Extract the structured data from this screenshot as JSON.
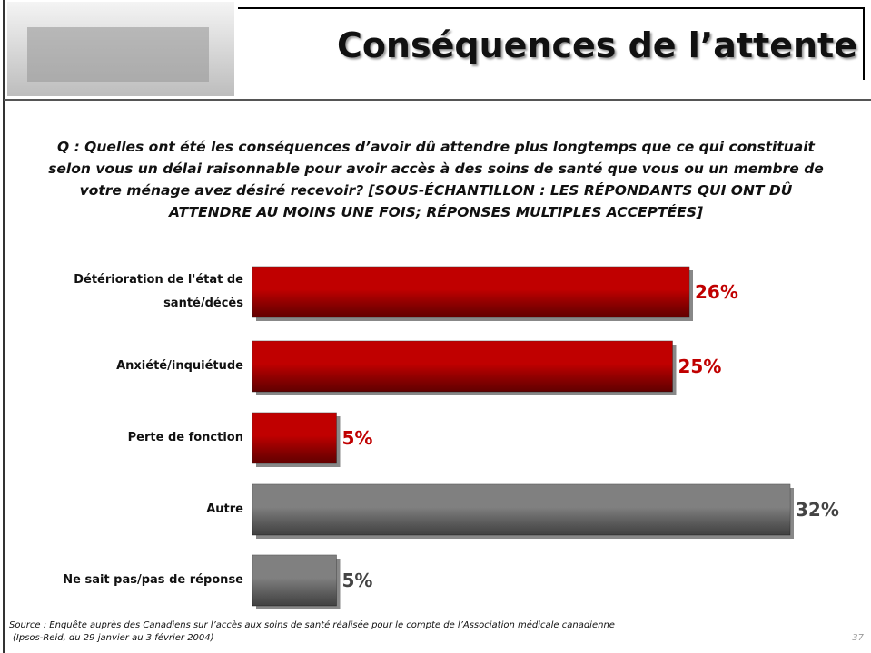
{
  "chart_data": {
    "type": "bar",
    "orientation": "horizontal",
    "title": "Conséquences de l’attente",
    "subtitle": "Q : Quelles ont été les conséquences d’avoir dû attendre plus longtemps que ce qui constituait selon vous un délai raisonnable pour avoir accès à des soins de santé que vous ou un membre de votre ménage avez désiré recevoir? [SOUS-ÉCHANTILLON : LES RÉPONDANTS QUI ONT DÛ ATTENDRE AU MOINS UNE FOIS; RÉPONSES MULTIPLES ACCEPTÉES]",
    "categories": [
      "Détérioration de l'état de santé/décès",
      "Anxiété/inquiétude",
      "Perte de fonction",
      "Autre",
      "Ne sait pas/pas de réponse"
    ],
    "values": [
      26,
      25,
      5,
      32,
      5
    ],
    "value_labels": [
      "26%",
      "25%",
      "5%",
      "32%",
      "5%"
    ],
    "colors": [
      "#c00000",
      "#c00000",
      "#c00000",
      "#808080",
      "#808080"
    ],
    "source": [
      "Source : Enquête auprès des Canadiens sur l’accès aux soins de santé réalisée pour le compte de l’Association médicale canadienne",
      "(Ipsos-Reid, du 29 janvier au 3 février 2004)"
    ],
    "page_number": "37"
  }
}
